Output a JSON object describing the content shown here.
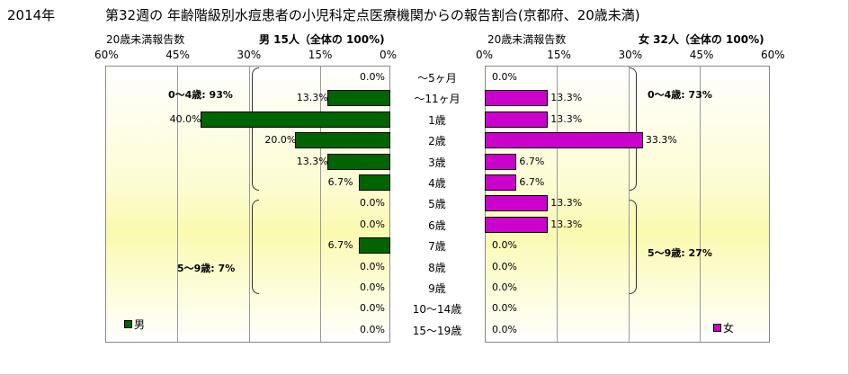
{
  "header": {
    "year": "2014年",
    "title": "第32週の 年齢階級別水痘患者の小児科定点医療機関からの報告割合(京都府、20歳未満)"
  },
  "male": {
    "caption": "20歳未満報告数",
    "summary": "男  15人（全体の  100%)",
    "legend": "男",
    "color": "#006400",
    "groups": [
      "0～4歳: 93%",
      "5～9歳: 7%"
    ]
  },
  "female": {
    "caption": "20歳未満報告数",
    "summary": "女  32人（全体の  100%)",
    "legend": "女",
    "color": "#cc00cc",
    "groups": [
      "0～4歳: 73%",
      "5～9歳: 27%"
    ]
  },
  "chart_data": {
    "type": "bar",
    "orientation": "horizontal-pyramid",
    "categories": [
      "～5ヶ月",
      "～11ヶ月",
      "1歳",
      "2歳",
      "3歳",
      "4歳",
      "5歳",
      "6歳",
      "7歳",
      "8歳",
      "9歳",
      "10～14歳",
      "15～19歳"
    ],
    "series": [
      {
        "name": "男",
        "values": [
          0.0,
          13.3,
          40.0,
          20.0,
          13.3,
          6.7,
          0.0,
          0.0,
          6.7,
          0.0,
          0.0,
          0.0,
          0.0
        ]
      },
      {
        "name": "女",
        "values": [
          0.0,
          13.3,
          13.3,
          33.3,
          6.7,
          6.7,
          13.3,
          13.3,
          0.0,
          0.0,
          0.0,
          0.0,
          0.0
        ]
      }
    ],
    "xlim": [
      0,
      60
    ],
    "male_ticks": [
      "60%",
      "45%",
      "30%",
      "15%",
      "0%"
    ],
    "female_ticks": [
      "0%",
      "15%",
      "30%",
      "45%",
      "60%"
    ]
  }
}
